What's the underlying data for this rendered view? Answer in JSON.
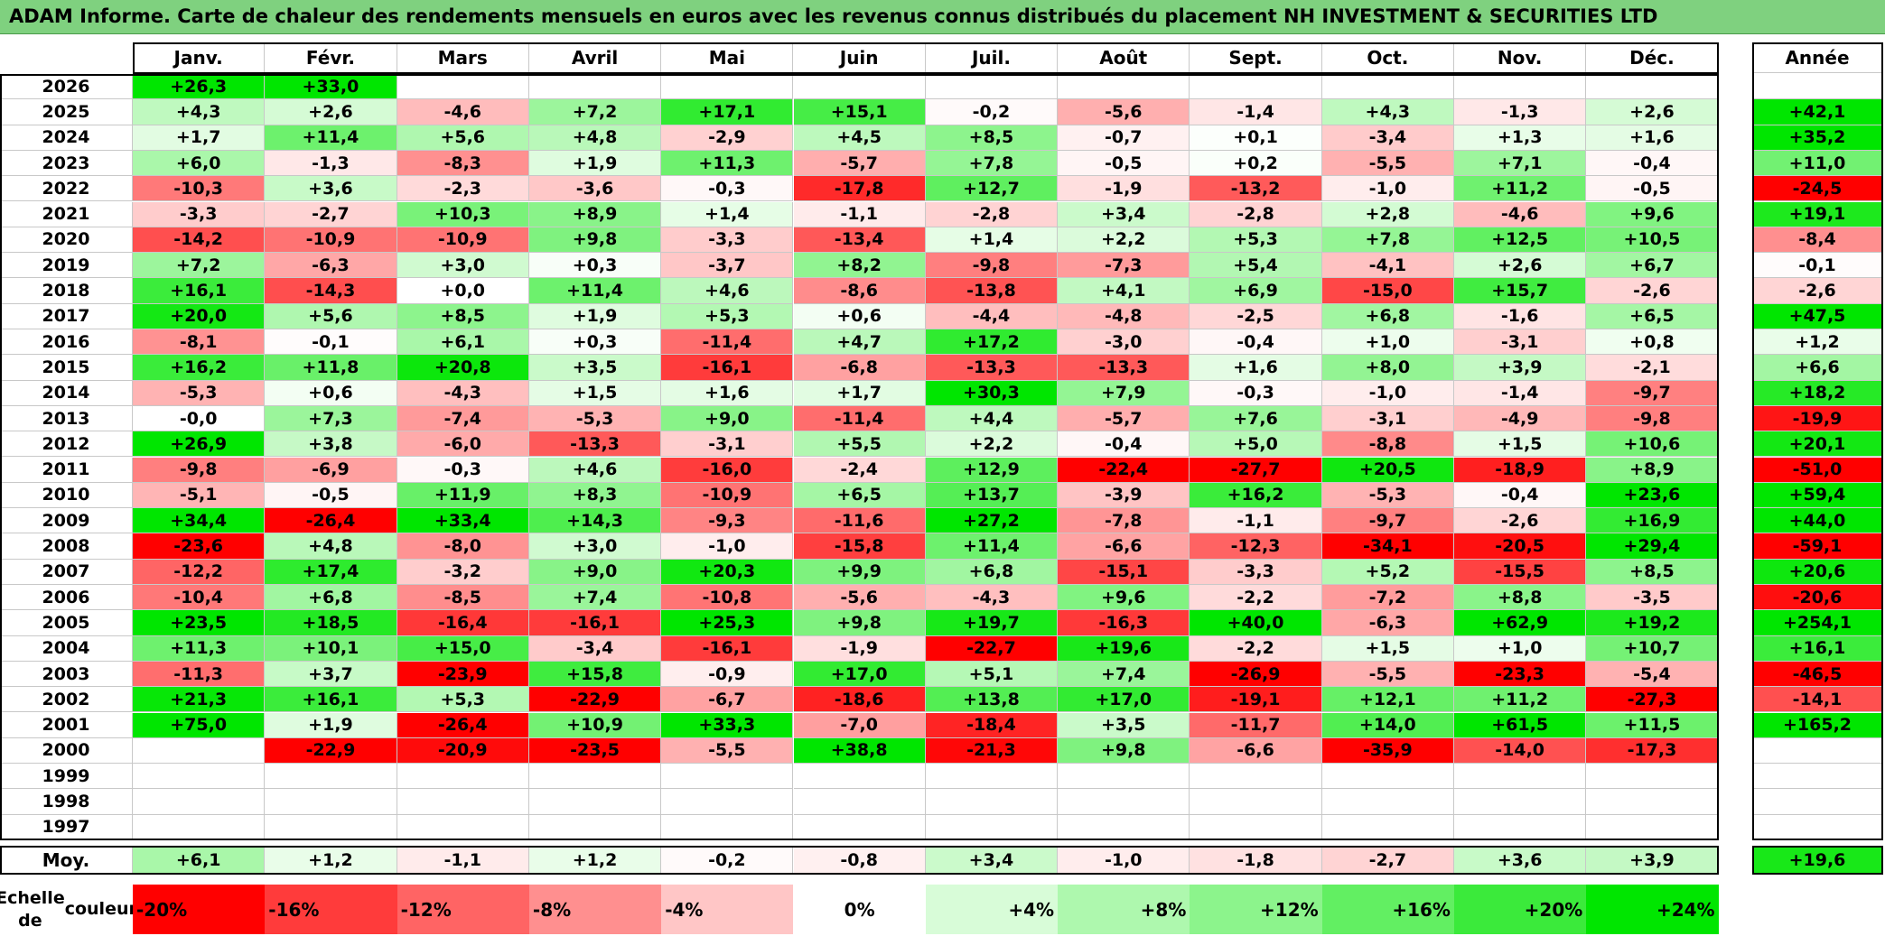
{
  "title": "ADAM Informe. Carte de chaleur des rendements mensuels en euros avec les revenus connus distribués du placement NH INVESTMENT & SECURITIES LTD",
  "colors": {
    "title_bg": "#7fd17f",
    "max_green": "#00e000",
    "max_red": "#ff0000"
  },
  "chart_data": {
    "type": "heatmap",
    "title": "ADAM Informe. Carte de chaleur des rendements mensuels en euros avec les revenus connus distribués du placement NH INVESTMENT & SECURITIES LTD",
    "columns": [
      "Janv.",
      "Févr.",
      "Mars",
      "Avril",
      "Mai",
      "Juin",
      "Juil.",
      "Août",
      "Sept.",
      "Oct.",
      "Nov.",
      "Déc."
    ],
    "year_column_label": "Année",
    "average_row_label": "Moy.",
    "rows": [
      {
        "year": "2026",
        "months": [
          "+26,3",
          "+33,0",
          "",
          "",
          "",
          "",
          "",
          "",
          "",
          "",
          "",
          ""
        ],
        "annual": ""
      },
      {
        "year": "2025",
        "months": [
          "+4,3",
          "+2,6",
          "-4,6",
          "+7,2",
          "+17,1",
          "+15,1",
          "-0,2",
          "-5,6",
          "-1,4",
          "+4,3",
          "-1,3",
          "+2,6"
        ],
        "annual": "+42,1"
      },
      {
        "year": "2024",
        "months": [
          "+1,7",
          "+11,4",
          "+5,6",
          "+4,8",
          "-2,9",
          "+4,5",
          "+8,5",
          "-0,7",
          "+0,1",
          "-3,4",
          "+1,3",
          "+1,6"
        ],
        "annual": "+35,2"
      },
      {
        "year": "2023",
        "months": [
          "+6,0",
          "-1,3",
          "-8,3",
          "+1,9",
          "+11,3",
          "-5,7",
          "+7,8",
          "-0,5",
          "+0,2",
          "-5,5",
          "+7,1",
          "-0,4"
        ],
        "annual": "+11,0"
      },
      {
        "year": "2022",
        "months": [
          "-10,3",
          "+3,6",
          "-2,3",
          "-3,6",
          "-0,3",
          "-17,8",
          "+12,7",
          "-1,9",
          "-13,2",
          "-1,0",
          "+11,2",
          "-0,5"
        ],
        "annual": "-24,5"
      },
      {
        "year": "2021",
        "months": [
          "-3,3",
          "-2,7",
          "+10,3",
          "+8,9",
          "+1,4",
          "-1,1",
          "-2,8",
          "+3,4",
          "-2,8",
          "+2,8",
          "-4,6",
          "+9,6"
        ],
        "annual": "+19,1"
      },
      {
        "year": "2020",
        "months": [
          "-14,2",
          "-10,9",
          "-10,9",
          "+9,8",
          "-3,3",
          "-13,4",
          "+1,4",
          "+2,2",
          "+5,3",
          "+7,8",
          "+12,5",
          "+10,5"
        ],
        "annual": "-8,4"
      },
      {
        "year": "2019",
        "months": [
          "+7,2",
          "-6,3",
          "+3,0",
          "+0,3",
          "-3,7",
          "+8,2",
          "-9,8",
          "-7,3",
          "+5,4",
          "-4,1",
          "+2,6",
          "+6,7"
        ],
        "annual": "-0,1"
      },
      {
        "year": "2018",
        "months": [
          "+16,1",
          "-14,3",
          "+0,0",
          "+11,4",
          "+4,6",
          "-8,6",
          "-13,8",
          "+4,1",
          "+6,9",
          "-15,0",
          "+15,7",
          "-2,6"
        ],
        "annual": "-2,6"
      },
      {
        "year": "2017",
        "months": [
          "+20,0",
          "+5,6",
          "+8,5",
          "+1,9",
          "+5,3",
          "+0,6",
          "-4,4",
          "-4,8",
          "-2,5",
          "+6,8",
          "-1,6",
          "+6,5"
        ],
        "annual": "+47,5"
      },
      {
        "year": "2016",
        "months": [
          "-8,1",
          "-0,1",
          "+6,1",
          "+0,3",
          "-11,4",
          "+4,7",
          "+17,2",
          "-3,0",
          "-0,4",
          "+1,0",
          "-3,1",
          "+0,8"
        ],
        "annual": "+1,2"
      },
      {
        "year": "2015",
        "months": [
          "+16,2",
          "+11,8",
          "+20,8",
          "+3,5",
          "-16,1",
          "-6,8",
          "-13,3",
          "-13,3",
          "+1,6",
          "+8,0",
          "+3,9",
          "-2,1"
        ],
        "annual": "+6,6"
      },
      {
        "year": "2014",
        "months": [
          "-5,3",
          "+0,6",
          "-4,3",
          "+1,5",
          "+1,6",
          "+1,7",
          "+30,3",
          "+7,9",
          "-0,3",
          "-1,0",
          "-1,4",
          "-9,7"
        ],
        "annual": "+18,2"
      },
      {
        "year": "2013",
        "months": [
          "-0,0",
          "+7,3",
          "-7,4",
          "-5,3",
          "+9,0",
          "-11,4",
          "+4,4",
          "-5,7",
          "+7,6",
          "-3,1",
          "-4,9",
          "-9,8"
        ],
        "annual": "-19,9"
      },
      {
        "year": "2012",
        "months": [
          "+26,9",
          "+3,8",
          "-6,0",
          "-13,3",
          "-3,1",
          "+5,5",
          "+2,2",
          "-0,4",
          "+5,0",
          "-8,8",
          "+1,5",
          "+10,6"
        ],
        "annual": "+20,1"
      },
      {
        "year": "2011",
        "months": [
          "-9,8",
          "-6,9",
          "-0,3",
          "+4,6",
          "-16,0",
          "-2,4",
          "+12,9",
          "-22,4",
          "-27,7",
          "+20,5",
          "-18,9",
          "+8,9"
        ],
        "annual": "-51,0"
      },
      {
        "year": "2010",
        "months": [
          "-5,1",
          "-0,5",
          "+11,9",
          "+8,3",
          "-10,9",
          "+6,5",
          "+13,7",
          "-3,9",
          "+16,2",
          "-5,3",
          "-0,4",
          "+23,6"
        ],
        "annual": "+59,4"
      },
      {
        "year": "2009",
        "months": [
          "+34,4",
          "-26,4",
          "+33,4",
          "+14,3",
          "-9,3",
          "-11,6",
          "+27,2",
          "-7,8",
          "-1,1",
          "-9,7",
          "-2,6",
          "+16,9"
        ],
        "annual": "+44,0"
      },
      {
        "year": "2008",
        "months": [
          "-23,6",
          "+4,8",
          "-8,0",
          "+3,0",
          "-1,0",
          "-15,8",
          "+11,4",
          "-6,6",
          "-12,3",
          "-34,1",
          "-20,5",
          "+29,4"
        ],
        "annual": "-59,1"
      },
      {
        "year": "2007",
        "months": [
          "-12,2",
          "+17,4",
          "-3,2",
          "+9,0",
          "+20,3",
          "+9,9",
          "+6,8",
          "-15,1",
          "-3,3",
          "+5,2",
          "-15,5",
          "+8,5"
        ],
        "annual": "+20,6"
      },
      {
        "year": "2006",
        "months": [
          "-10,4",
          "+6,8",
          "-8,5",
          "+7,4",
          "-10,8",
          "-5,6",
          "-4,3",
          "+9,6",
          "-2,2",
          "-7,2",
          "+8,8",
          "-3,5"
        ],
        "annual": "-20,6"
      },
      {
        "year": "2005",
        "months": [
          "+23,5",
          "+18,5",
          "-16,4",
          "-16,1",
          "+25,3",
          "+9,8",
          "+19,7",
          "-16,3",
          "+40,0",
          "-6,3",
          "+62,9",
          "+19,2"
        ],
        "annual": "+254,1"
      },
      {
        "year": "2004",
        "months": [
          "+11,3",
          "+10,1",
          "+15,0",
          "-3,4",
          "-16,1",
          "-1,9",
          "-22,7",
          "+19,6",
          "-2,2",
          "+1,5",
          "+1,0",
          "+10,7"
        ],
        "annual": "+16,1"
      },
      {
        "year": "2003",
        "months": [
          "-11,3",
          "+3,7",
          "-23,9",
          "+15,8",
          "-0,9",
          "+17,0",
          "+5,1",
          "+7,4",
          "-26,9",
          "-5,5",
          "-23,3",
          "-5,4"
        ],
        "annual": "-46,5"
      },
      {
        "year": "2002",
        "months": [
          "+21,3",
          "+16,1",
          "+5,3",
          "-22,9",
          "-6,7",
          "-18,6",
          "+13,8",
          "+17,0",
          "-19,1",
          "+12,1",
          "+11,2",
          "-27,3"
        ],
        "annual": "-14,1"
      },
      {
        "year": "2001",
        "months": [
          "+75,0",
          "+1,9",
          "-26,4",
          "+10,9",
          "+33,3",
          "-7,0",
          "-18,4",
          "+3,5",
          "-11,7",
          "+14,0",
          "+61,5",
          "+11,5"
        ],
        "annual": "+165,2"
      },
      {
        "year": "2000",
        "months": [
          "",
          "-22,9",
          "-20,9",
          "-23,5",
          "-5,5",
          "+38,8",
          "-21,3",
          "+9,8",
          "-6,6",
          "-35,9",
          "-14,0",
          "-17,3"
        ],
        "annual": ""
      },
      {
        "year": "1999",
        "months": [
          "",
          "",
          "",
          "",
          "",
          "",
          "",
          "",
          "",
          "",
          "",
          ""
        ],
        "annual": ""
      },
      {
        "year": "1998",
        "months": [
          "",
          "",
          "",
          "",
          "",
          "",
          "",
          "",
          "",
          "",
          "",
          ""
        ],
        "annual": ""
      },
      {
        "year": "1997",
        "months": [
          "",
          "",
          "",
          "",
          "",
          "",
          "",
          "",
          "",
          "",
          "",
          ""
        ],
        "annual": ""
      }
    ],
    "averages": {
      "months": [
        "+6,1",
        "+1,2",
        "-1,1",
        "+1,2",
        "-0,2",
        "-0,8",
        "+3,4",
        "-1,0",
        "-1,8",
        "-2,7",
        "+3,6",
        "+3,9"
      ],
      "annual": "+19,6"
    },
    "color_scale": {
      "label_line1": "Echelle de",
      "label_line2": "couleur",
      "stops": [
        "-20%",
        "-16%",
        "-12%",
        "-8%",
        "-4%",
        "0%",
        "+4%",
        "+8%",
        "+12%",
        "+16%",
        "+20%",
        "+24%"
      ],
      "colors": [
        "#ff0000",
        "#ff3b3b",
        "#ff6464",
        "#ff8f8f",
        "#ffc6c6",
        "#ffffff",
        "#d8fcd8",
        "#aef8ae",
        "#8cf48c",
        "#62ef62",
        "#3bea3b",
        "#00e600"
      ]
    }
  }
}
